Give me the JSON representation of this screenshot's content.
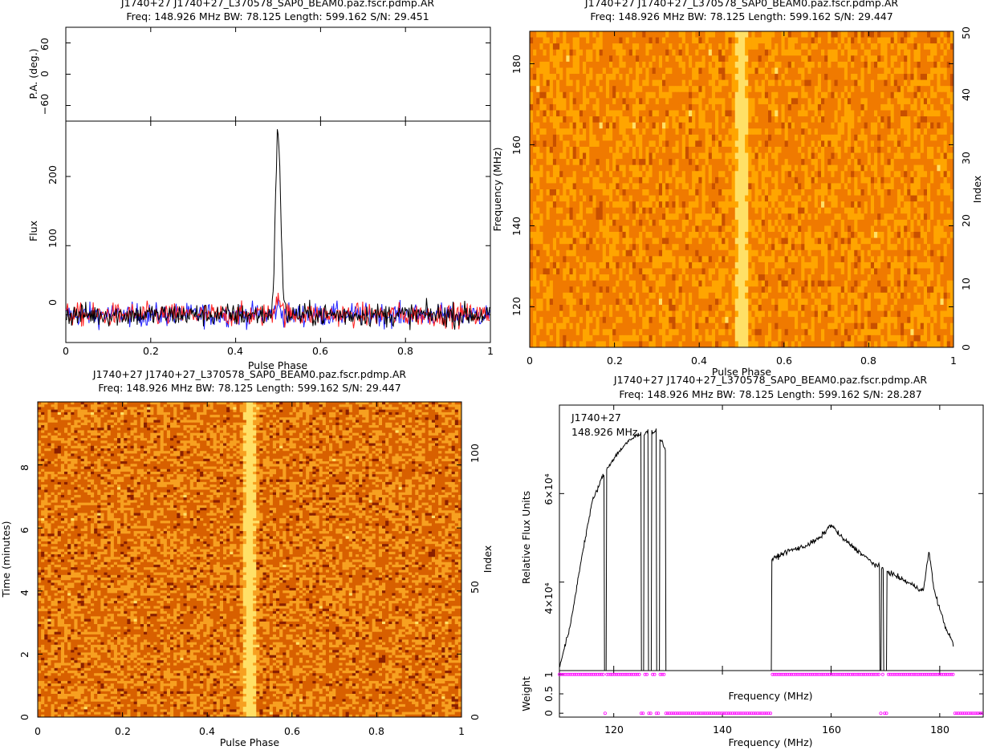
{
  "chart_data": [
    {
      "id": "profile",
      "type": "line",
      "title": "J1740+27  J1740+27_L370578_SAP0_BEAM0.paz.fscr.pdmp.AR",
      "subtitle": "Freq: 148.926 MHz BW: 78.125 Length: 599.162 S/N: 29.451",
      "xlabel": "Pulse Phase",
      "xlim": [
        0,
        1
      ],
      "x_ticks": [
        "0",
        "0.2",
        "0.4",
        "0.6",
        "0.8",
        "1"
      ],
      "pa_panel": {
        "ylabel": "P.A. (deg.)",
        "ylim": [
          -90,
          90
        ],
        "y_ticks": [
          "−60",
          "0",
          "60"
        ]
      },
      "flux_panel": {
        "ylabel": "Flux",
        "ylim": [
          -40,
          280
        ],
        "y_ticks": [
          "0",
          "100",
          "200"
        ]
      },
      "series": [
        {
          "color": "#000000",
          "peak_phase": 0.5,
          "peak_value": 268,
          "noise_level": 12
        },
        {
          "color": "#ff2020",
          "peak_phase": 0.5,
          "peak_value": 30,
          "noise_level": 12
        },
        {
          "color": "#2020ff",
          "peak_phase": 0.5,
          "peak_value": 12,
          "noise_level": 12
        }
      ]
    },
    {
      "id": "freq-phase",
      "type": "heatmap",
      "title": "J1740+27  J1740+27_L370578_SAP0_BEAM0.paz.fscr.pdmp.AR",
      "subtitle": "Freq: 148.926 MHz BW: 78.125 Length: 599.162 S/N: 29.447",
      "xlabel": "Pulse Phase",
      "ylabel": "Frequency (MHz)",
      "ylabel_right": "Index",
      "xlim": [
        0,
        1
      ],
      "ylim": [
        110,
        188
      ],
      "x_ticks": [
        "0",
        "0.2",
        "0.4",
        "0.6",
        "0.8",
        "1"
      ],
      "y_ticks": [
        "120",
        "140",
        "160",
        "180"
      ],
      "y_right_ticks": [
        "0",
        "10",
        "20",
        "30",
        "40",
        "50"
      ],
      "pulse_phase": 0.5,
      "colormap": [
        "#c85000",
        "#f07a00",
        "#ffa500",
        "#ffe066"
      ]
    },
    {
      "id": "time-phase",
      "type": "heatmap",
      "title": "J1740+27  J1740+27_L370578_SAP0_BEAM0.paz.fscr.pdmp.AR",
      "subtitle": "Freq: 148.926 MHz BW: 78.125 Length: 599.162 S/N: 29.447",
      "xlabel": "Pulse Phase",
      "ylabel": "Time (minutes)",
      "ylabel_right": "Index",
      "xlim": [
        0,
        1
      ],
      "ylim": [
        0,
        10
      ],
      "x_ticks": [
        "0",
        "0.2",
        "0.4",
        "0.6",
        "0.8",
        "1"
      ],
      "y_ticks": [
        "0",
        "2",
        "4",
        "6",
        "8"
      ],
      "y_right_ticks": [
        "0",
        "50",
        "100"
      ],
      "pulse_phase": 0.5,
      "colormap": [
        "#8b2000",
        "#d86000",
        "#f7a020",
        "#ffe066"
      ]
    },
    {
      "id": "bandpass",
      "type": "line",
      "title": "J1740+27  J1740+27_L370578_SAP0_BEAM0.paz.fscr.pdmp.AR",
      "subtitle": "Freq: 148.926 MHz BW: 78.125 Length: 599.162 S/N: 28.287",
      "annotation_lines": [
        "J1740+27",
        "148.926 MHz"
      ],
      "xlabel": "Frequency (MHz)",
      "xlim": [
        110,
        188
      ],
      "x_ticks": [
        "120",
        "140",
        "160",
        "180"
      ],
      "flux_panel": {
        "ylabel": "Relative Flux Units",
        "ylim": [
          20000,
          80000
        ],
        "y_ticks": [
          "4×10⁴",
          "6×10⁴"
        ]
      },
      "weight_panel": {
        "ylabel": "Weight",
        "xlabel": "Frequency (MHz)",
        "ylim": [
          -0.1,
          1.1
        ],
        "y_ticks": [
          "0",
          "0.5",
          "1"
        ]
      },
      "bandpass_points": [
        [
          110,
          21000
        ],
        [
          112,
          30000
        ],
        [
          114,
          45000
        ],
        [
          116,
          58000
        ],
        [
          118,
          64000
        ],
        [
          120,
          68000
        ],
        [
          122,
          71000
        ],
        [
          124,
          73000
        ],
        [
          126,
          74000
        ],
        [
          128,
          74000
        ],
        [
          129.5,
          70000
        ],
        [
          149,
          45000
        ],
        [
          152,
          47000
        ],
        [
          155,
          48000
        ],
        [
          158,
          50000
        ],
        [
          160,
          53000
        ],
        [
          162,
          50000
        ],
        [
          165,
          47000
        ],
        [
          168,
          44000
        ],
        [
          171,
          42000
        ],
        [
          174,
          40000
        ],
        [
          177,
          38000
        ],
        [
          178,
          47000
        ],
        [
          179,
          38000
        ],
        [
          181,
          30000
        ],
        [
          182.5,
          26000
        ]
      ],
      "zapped_ranges_mhz": [
        [
          118.2,
          118.6
        ],
        [
          125.0,
          125.5
        ],
        [
          126.3,
          126.9
        ],
        [
          127.8,
          128.4
        ],
        [
          129.5,
          149
        ],
        [
          168.9,
          169.2
        ],
        [
          169.6,
          170.2
        ],
        [
          182.5,
          188
        ]
      ],
      "weight_color": "#ff00ff"
    }
  ]
}
